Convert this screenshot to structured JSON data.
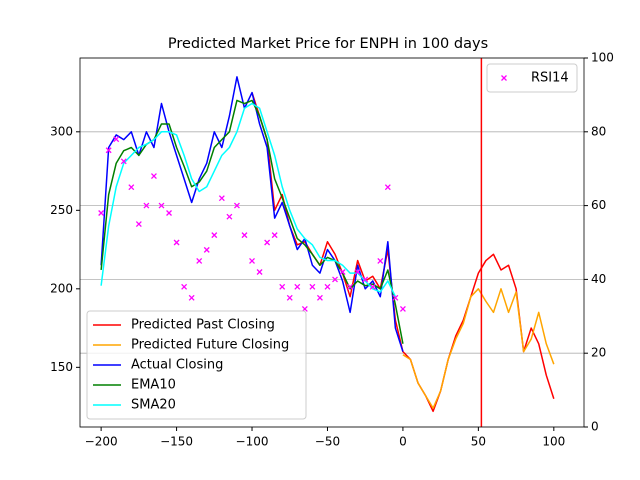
{
  "chart_data": {
    "type": "line",
    "title": "Predicted Market Price for ENPH in 100 days",
    "xlim": [
      -214,
      120
    ],
    "xticks": [
      {
        "value": -200,
        "label": "−200"
      },
      {
        "value": -150,
        "label": "−150"
      },
      {
        "value": -100,
        "label": "−100"
      },
      {
        "value": -50,
        "label": "−50"
      },
      0,
      50,
      100
    ],
    "ylim": [
      112,
      347
    ],
    "yticks": [
      150,
      200,
      250,
      300
    ],
    "y2lim": [
      0,
      100
    ],
    "y2ticks": [
      0,
      20,
      40,
      60,
      80,
      100
    ],
    "grid": "y2",
    "legend": "lower left",
    "y2_legend": "upper right",
    "vline": {
      "x": 52,
      "color": "#ff0000"
    },
    "series": [
      {
        "name": "Predicted Past Closing",
        "color": "#ff0000",
        "type": "line",
        "x": [
          -100,
          -95,
          -90,
          -85,
          -80,
          -75,
          -70,
          -65,
          -60,
          -55,
          -50,
          -45,
          -40,
          -35,
          -30,
          -25,
          -20,
          -15,
          -10,
          -5,
          0,
          5,
          10,
          15,
          20,
          25,
          30,
          35,
          40,
          45,
          50,
          55,
          60,
          65,
          70,
          75,
          80,
          85,
          90,
          95,
          100
        ],
        "values": [
          325,
          310,
          295,
          250,
          260,
          240,
          228,
          230,
          222,
          215,
          230,
          222,
          210,
          195,
          218,
          205,
          208,
          200,
          225,
          180,
          160,
          155,
          140,
          132,
          122,
          135,
          155,
          170,
          180,
          195,
          210,
          218,
          222,
          212,
          215,
          200,
          160,
          175,
          165,
          145,
          130
        ]
      },
      {
        "name": "Predicted Future Closing",
        "color": "#ffa500",
        "type": "line",
        "x": [
          0,
          5,
          10,
          15,
          20,
          25,
          30,
          35,
          40,
          45,
          50,
          55,
          60,
          65,
          70,
          75,
          80,
          85,
          90,
          95,
          100
        ],
        "values": [
          158,
          155,
          140,
          132,
          124,
          135,
          155,
          168,
          178,
          195,
          200,
          192,
          185,
          200,
          185,
          198,
          160,
          168,
          185,
          165,
          152
        ]
      },
      {
        "name": "Actual Closing",
        "color": "#0000ff",
        "type": "line",
        "x": [
          -200,
          -195,
          -190,
          -185,
          -180,
          -175,
          -170,
          -165,
          -160,
          -155,
          -150,
          -145,
          -140,
          -135,
          -130,
          -125,
          -120,
          -115,
          -110,
          -105,
          -100,
          -95,
          -90,
          -85,
          -80,
          -75,
          -70,
          -65,
          -60,
          -55,
          -50,
          -45,
          -40,
          -35,
          -30,
          -25,
          -20,
          -15,
          -10,
          -5,
          0
        ],
        "values": [
          215,
          290,
          298,
          295,
          300,
          285,
          300,
          290,
          318,
          300,
          285,
          270,
          255,
          270,
          280,
          300,
          290,
          310,
          335,
          315,
          325,
          305,
          290,
          245,
          255,
          240,
          225,
          232,
          215,
          210,
          225,
          218,
          205,
          185,
          215,
          200,
          205,
          195,
          230,
          175,
          160
        ]
      },
      {
        "name": "EMA10",
        "color": "#008000",
        "type": "line",
        "x": [
          -200,
          -195,
          -190,
          -185,
          -180,
          -175,
          -170,
          -165,
          -160,
          -155,
          -150,
          -145,
          -140,
          -135,
          -130,
          -125,
          -120,
          -115,
          -110,
          -105,
          -100,
          -95,
          -90,
          -85,
          -80,
          -75,
          -70,
          -65,
          -60,
          -55,
          -50,
          -45,
          -40,
          -35,
          -30,
          -25,
          -20,
          -15,
          -10,
          -5,
          0
        ],
        "values": [
          212,
          260,
          280,
          288,
          290,
          285,
          292,
          295,
          305,
          305,
          290,
          278,
          265,
          268,
          275,
          290,
          295,
          300,
          320,
          318,
          320,
          310,
          295,
          270,
          258,
          245,
          232,
          228,
          222,
          215,
          220,
          218,
          210,
          200,
          205,
          202,
          203,
          200,
          212,
          190,
          165
        ]
      },
      {
        "name": "SMA20",
        "color": "#00ffff",
        "type": "line",
        "x": [
          -200,
          -195,
          -190,
          -185,
          -180,
          -175,
          -170,
          -165,
          -160,
          -155,
          -150,
          -145,
          -140,
          -135,
          -130,
          -125,
          -120,
          -115,
          -110,
          -105,
          -100,
          -95,
          -90,
          -85,
          -80,
          -75,
          -70,
          -65,
          -60,
          -55,
          -50,
          -45,
          -40,
          -35,
          -30,
          -25,
          -20,
          -15,
          -10,
          -5
        ],
        "values": [
          202,
          240,
          265,
          280,
          285,
          290,
          292,
          295,
          300,
          300,
          298,
          285,
          270,
          262,
          265,
          275,
          285,
          290,
          300,
          315,
          318,
          315,
          300,
          285,
          265,
          250,
          238,
          232,
          228,
          220,
          218,
          218,
          215,
          210,
          210,
          205,
          200,
          198,
          205,
          195
        ]
      },
      {
        "name": "RSI14",
        "color": "#ff00ff",
        "type": "scatter",
        "axis": "y2",
        "x": [
          -200,
          -195,
          -190,
          -185,
          -180,
          -175,
          -170,
          -165,
          -160,
          -155,
          -150,
          -145,
          -140,
          -135,
          -130,
          -125,
          -120,
          -115,
          -110,
          -105,
          -100,
          -95,
          -90,
          -85,
          -80,
          -75,
          -70,
          -65,
          -60,
          -55,
          -50,
          -45,
          -40,
          -35,
          -30,
          -25,
          -20,
          -15,
          -10,
          -5,
          0
        ],
        "values": [
          58,
          75,
          78,
          72,
          65,
          55,
          60,
          68,
          60,
          58,
          50,
          38,
          35,
          45,
          48,
          52,
          62,
          57,
          60,
          52,
          45,
          42,
          50,
          52,
          38,
          35,
          38,
          32,
          38,
          35,
          38,
          40,
          42,
          38,
          42,
          40,
          38,
          45,
          65,
          35,
          32
        ]
      }
    ]
  }
}
